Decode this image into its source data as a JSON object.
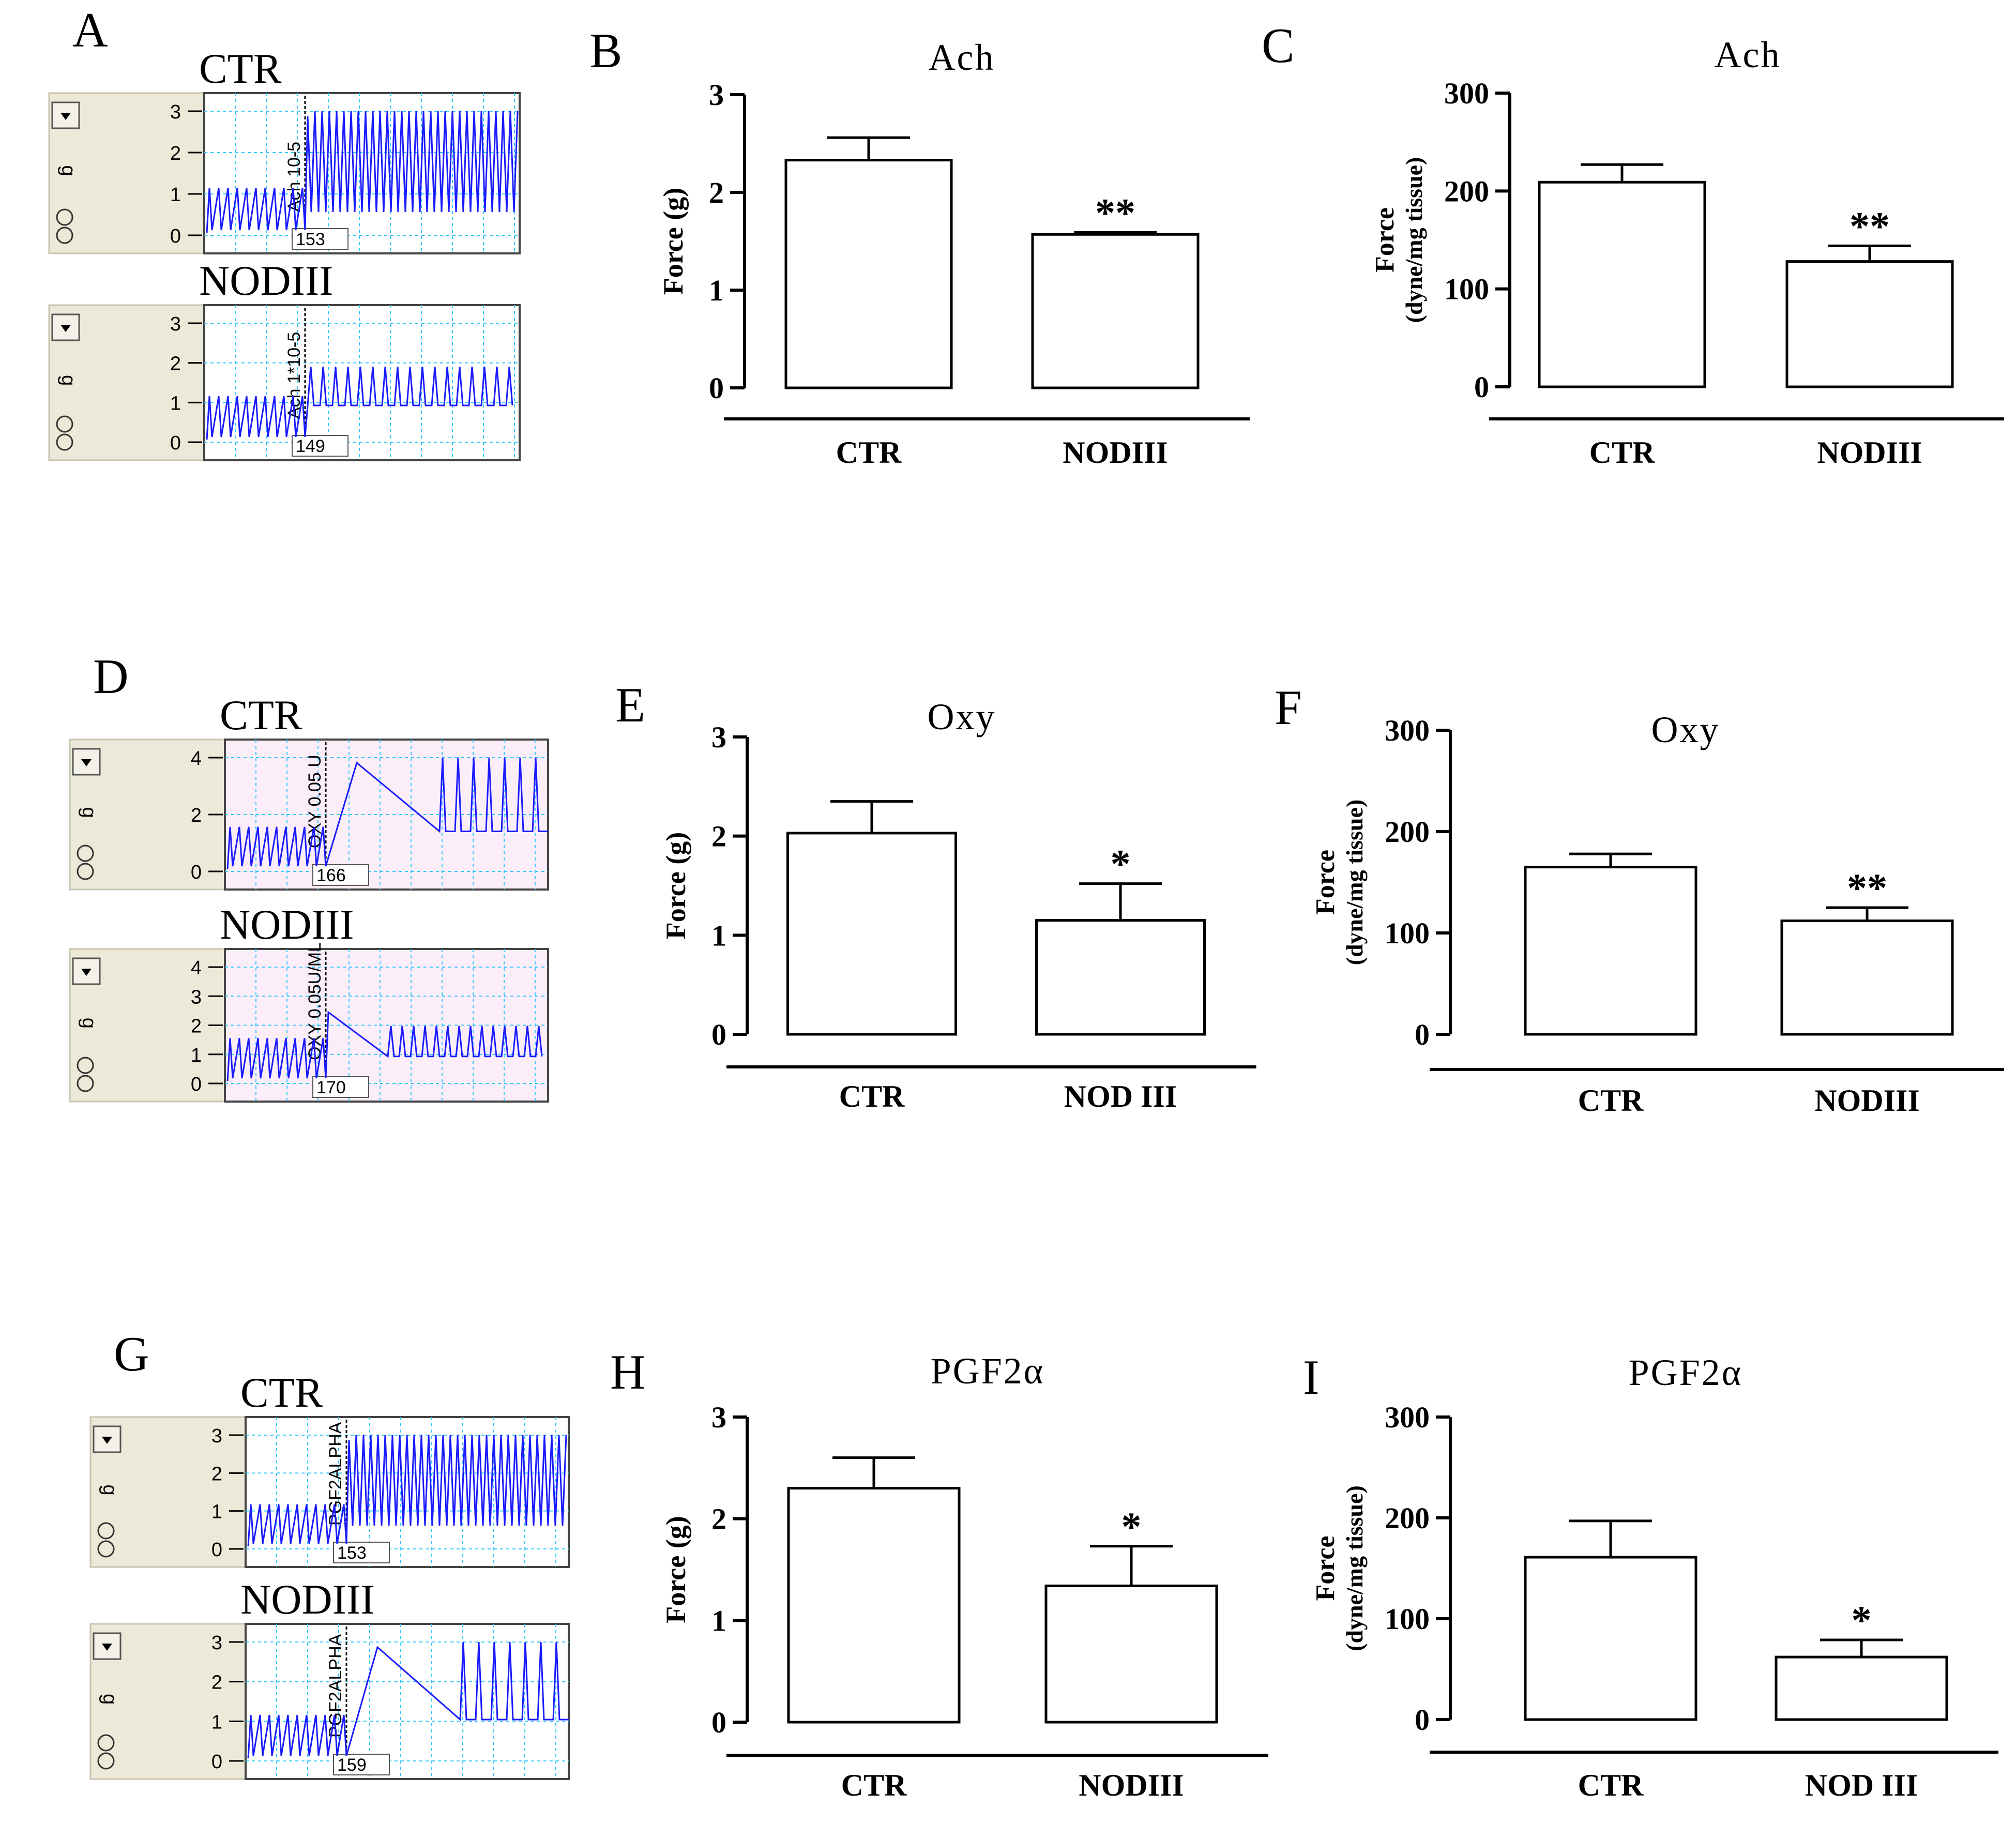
{
  "panels": [
    {
      "letter": "A",
      "cond": "CTR",
      "agent": "Ach 10-5",
      "num": "153",
      "yticks": [
        "3",
        "2",
        "1",
        "0"
      ],
      "unit": "g",
      "bg": "#ffffff",
      "trace": "highosc"
    },
    {
      "letter": "",
      "cond": "NODIII",
      "agent": "Ach 1*10-5",
      "num": "149",
      "yticks": [
        "3",
        "2",
        "1",
        "0"
      ],
      "unit": "g",
      "bg": "#ffffff",
      "trace": "spikes-mid"
    },
    {
      "letter": "D",
      "cond": "CTR",
      "agent": "OXY 0.05 U",
      "num": "166",
      "yticks": [
        "4",
        "2",
        "0"
      ],
      "unit": "g",
      "bg": "#fbeef8",
      "trace": "spikes-tall"
    },
    {
      "letter": "",
      "cond": "NODIII",
      "agent": "OXY 0.05U/ML",
      "num": "170",
      "yticks": [
        "4",
        "3",
        "2",
        "1",
        "0"
      ],
      "unit": "g",
      "bg": "#fbeef8",
      "trace": "spikes-low"
    },
    {
      "letter": "G",
      "cond": "CTR",
      "agent": "PGF2ALPHA",
      "num": "153",
      "yticks": [
        "3",
        "2",
        "1",
        "0"
      ],
      "unit": "g",
      "bg": "#ffffff",
      "trace": "highosc"
    },
    {
      "letter": "",
      "cond": "NODIII",
      "agent": "PGF2ALPHA",
      "num": "159",
      "yticks": [
        "3",
        "2",
        "1",
        "0"
      ],
      "unit": "g",
      "bg": "#ffffff",
      "trace": "spikes-tall"
    }
  ],
  "chart_data": [
    {
      "letter": "B",
      "type": "bar",
      "title": "Ach",
      "ylabel": [
        "Force (g)"
      ],
      "ylim": [
        0,
        3
      ],
      "yticks": [
        "0",
        "1",
        "2",
        "3"
      ],
      "categories": [
        "CTR",
        "NODIII"
      ],
      "values": [
        2.33,
        1.57
      ],
      "errors": [
        0.23,
        0.02
      ],
      "sig": [
        "",
        "**"
      ]
    },
    {
      "letter": "C",
      "type": "bar",
      "title": "Ach",
      "ylabel": [
        "Force",
        "(dyne/mg tissue)"
      ],
      "ylim": [
        0,
        300
      ],
      "yticks": [
        "0",
        "100",
        "200",
        "300"
      ],
      "categories": [
        "CTR",
        "NODIII"
      ],
      "values": [
        209,
        128
      ],
      "errors": [
        18,
        16
      ],
      "sig": [
        "",
        "**"
      ]
    },
    {
      "letter": "E",
      "type": "bar",
      "title": "Oxy",
      "ylabel": [
        "Force (g)"
      ],
      "ylim": [
        0,
        3
      ],
      "yticks": [
        "0",
        "1",
        "2",
        "3"
      ],
      "categories": [
        "CTR",
        "NOD III"
      ],
      "values": [
        2.03,
        1.15
      ],
      "errors": [
        0.32,
        0.37
      ],
      "sig": [
        "",
        "*"
      ]
    },
    {
      "letter": "F",
      "type": "bar",
      "title": "Oxy",
      "ylabel": [
        "Force",
        "(dyne/mg tissue)"
      ],
      "ylim": [
        0,
        300
      ],
      "yticks": [
        "0",
        "100",
        "200",
        "300"
      ],
      "categories": [
        "CTR",
        "NODIII"
      ],
      "values": [
        165,
        112
      ],
      "errors": [
        13,
        13
      ],
      "sig": [
        "",
        "**"
      ]
    },
    {
      "letter": "H",
      "type": "bar",
      "title": "PGF2α",
      "ylabel": [
        "Force (g)"
      ],
      "ylim": [
        0,
        3
      ],
      "yticks": [
        "0",
        "1",
        "2",
        "3"
      ],
      "categories": [
        "CTR",
        "NODIII"
      ],
      "values": [
        2.3,
        1.34
      ],
      "errors": [
        0.3,
        0.39
      ],
      "sig": [
        "",
        "*"
      ]
    },
    {
      "letter": "I",
      "type": "bar",
      "title": "PGF2α",
      "ylabel": [
        "Force",
        "(dyne/mg tissue)"
      ],
      "ylim": [
        0,
        300
      ],
      "yticks": [
        "0",
        "100",
        "200",
        "300"
      ],
      "categories": [
        "CTR",
        "NOD III"
      ],
      "values": [
        161,
        62
      ],
      "errors": [
        36,
        17
      ],
      "sig": [
        "",
        "*"
      ]
    }
  ]
}
